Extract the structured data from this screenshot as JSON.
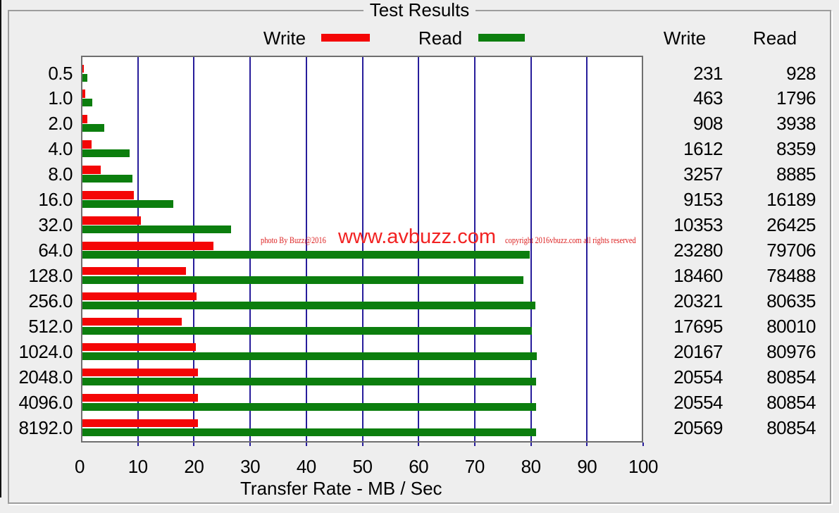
{
  "group": {
    "title": "Test Results"
  },
  "legend": {
    "write_label": "Write",
    "read_label": "Read"
  },
  "results_table": {
    "write_header": "Write",
    "read_header": "Read",
    "rows": [
      {
        "size": "0.5",
        "write": "231",
        "read": "928"
      },
      {
        "size": "1.0",
        "write": "463",
        "read": "1796"
      },
      {
        "size": "2.0",
        "write": "908",
        "read": "3938"
      },
      {
        "size": "4.0",
        "write": "1612",
        "read": "8359"
      },
      {
        "size": "8.0",
        "write": "3257",
        "read": "8885"
      },
      {
        "size": "16.0",
        "write": "9153",
        "read": "16189"
      },
      {
        "size": "32.0",
        "write": "10353",
        "read": "26425"
      },
      {
        "size": "64.0",
        "write": "23280",
        "read": "79706"
      },
      {
        "size": "128.0",
        "write": "18460",
        "read": "78488"
      },
      {
        "size": "256.0",
        "write": "20321",
        "read": "80635"
      },
      {
        "size": "512.0",
        "write": "17695",
        "read": "80010"
      },
      {
        "size": "1024.0",
        "write": "20167",
        "read": "80976"
      },
      {
        "size": "2048.0",
        "write": "20554",
        "read": "80854"
      },
      {
        "size": "4096.0",
        "write": "20554",
        "read": "80854"
      },
      {
        "size": "8192.0",
        "write": "20569",
        "read": "80854"
      }
    ]
  },
  "watermark": {
    "left_text": "photo By Buzz@2016",
    "center_text": "www.avbuzz.com",
    "right_text": "copyright 2016vbuzz.com all rights reserved"
  },
  "colors": {
    "write_bar": "#f40606",
    "read_bar": "#0c7e0e",
    "gridline": "#271d9b",
    "watermark_small": "#dd2020",
    "watermark_big": "#f22222"
  },
  "chart_data": {
    "type": "bar",
    "orientation": "horizontal",
    "title": "Test Results",
    "xlabel": "Transfer Rate - MB / Sec",
    "ylabel": "",
    "categories": [
      "0.5",
      "1.0",
      "2.0",
      "4.0",
      "8.0",
      "16.0",
      "32.0",
      "64.0",
      "128.0",
      "256.0",
      "512.0",
      "1024.0",
      "2048.0",
      "4096.0",
      "8192.0"
    ],
    "series": [
      {
        "name": "Write",
        "values": [
          231,
          463,
          908,
          1612,
          3257,
          9153,
          10353,
          23280,
          18460,
          20321,
          17695,
          20167,
          20554,
          20554,
          20569
        ]
      },
      {
        "name": "Read",
        "values": [
          928,
          1796,
          3938,
          8359,
          8885,
          16189,
          26425,
          79706,
          78488,
          80635,
          80010,
          80976,
          80854,
          80854,
          80854
        ]
      }
    ],
    "values_scale_to_axis": 0.001,
    "xlim": [
      0,
      100
    ],
    "x_ticks": [
      0,
      10,
      20,
      30,
      40,
      50,
      60,
      70,
      80,
      90,
      100
    ],
    "grid": true,
    "legend_position": "top"
  }
}
